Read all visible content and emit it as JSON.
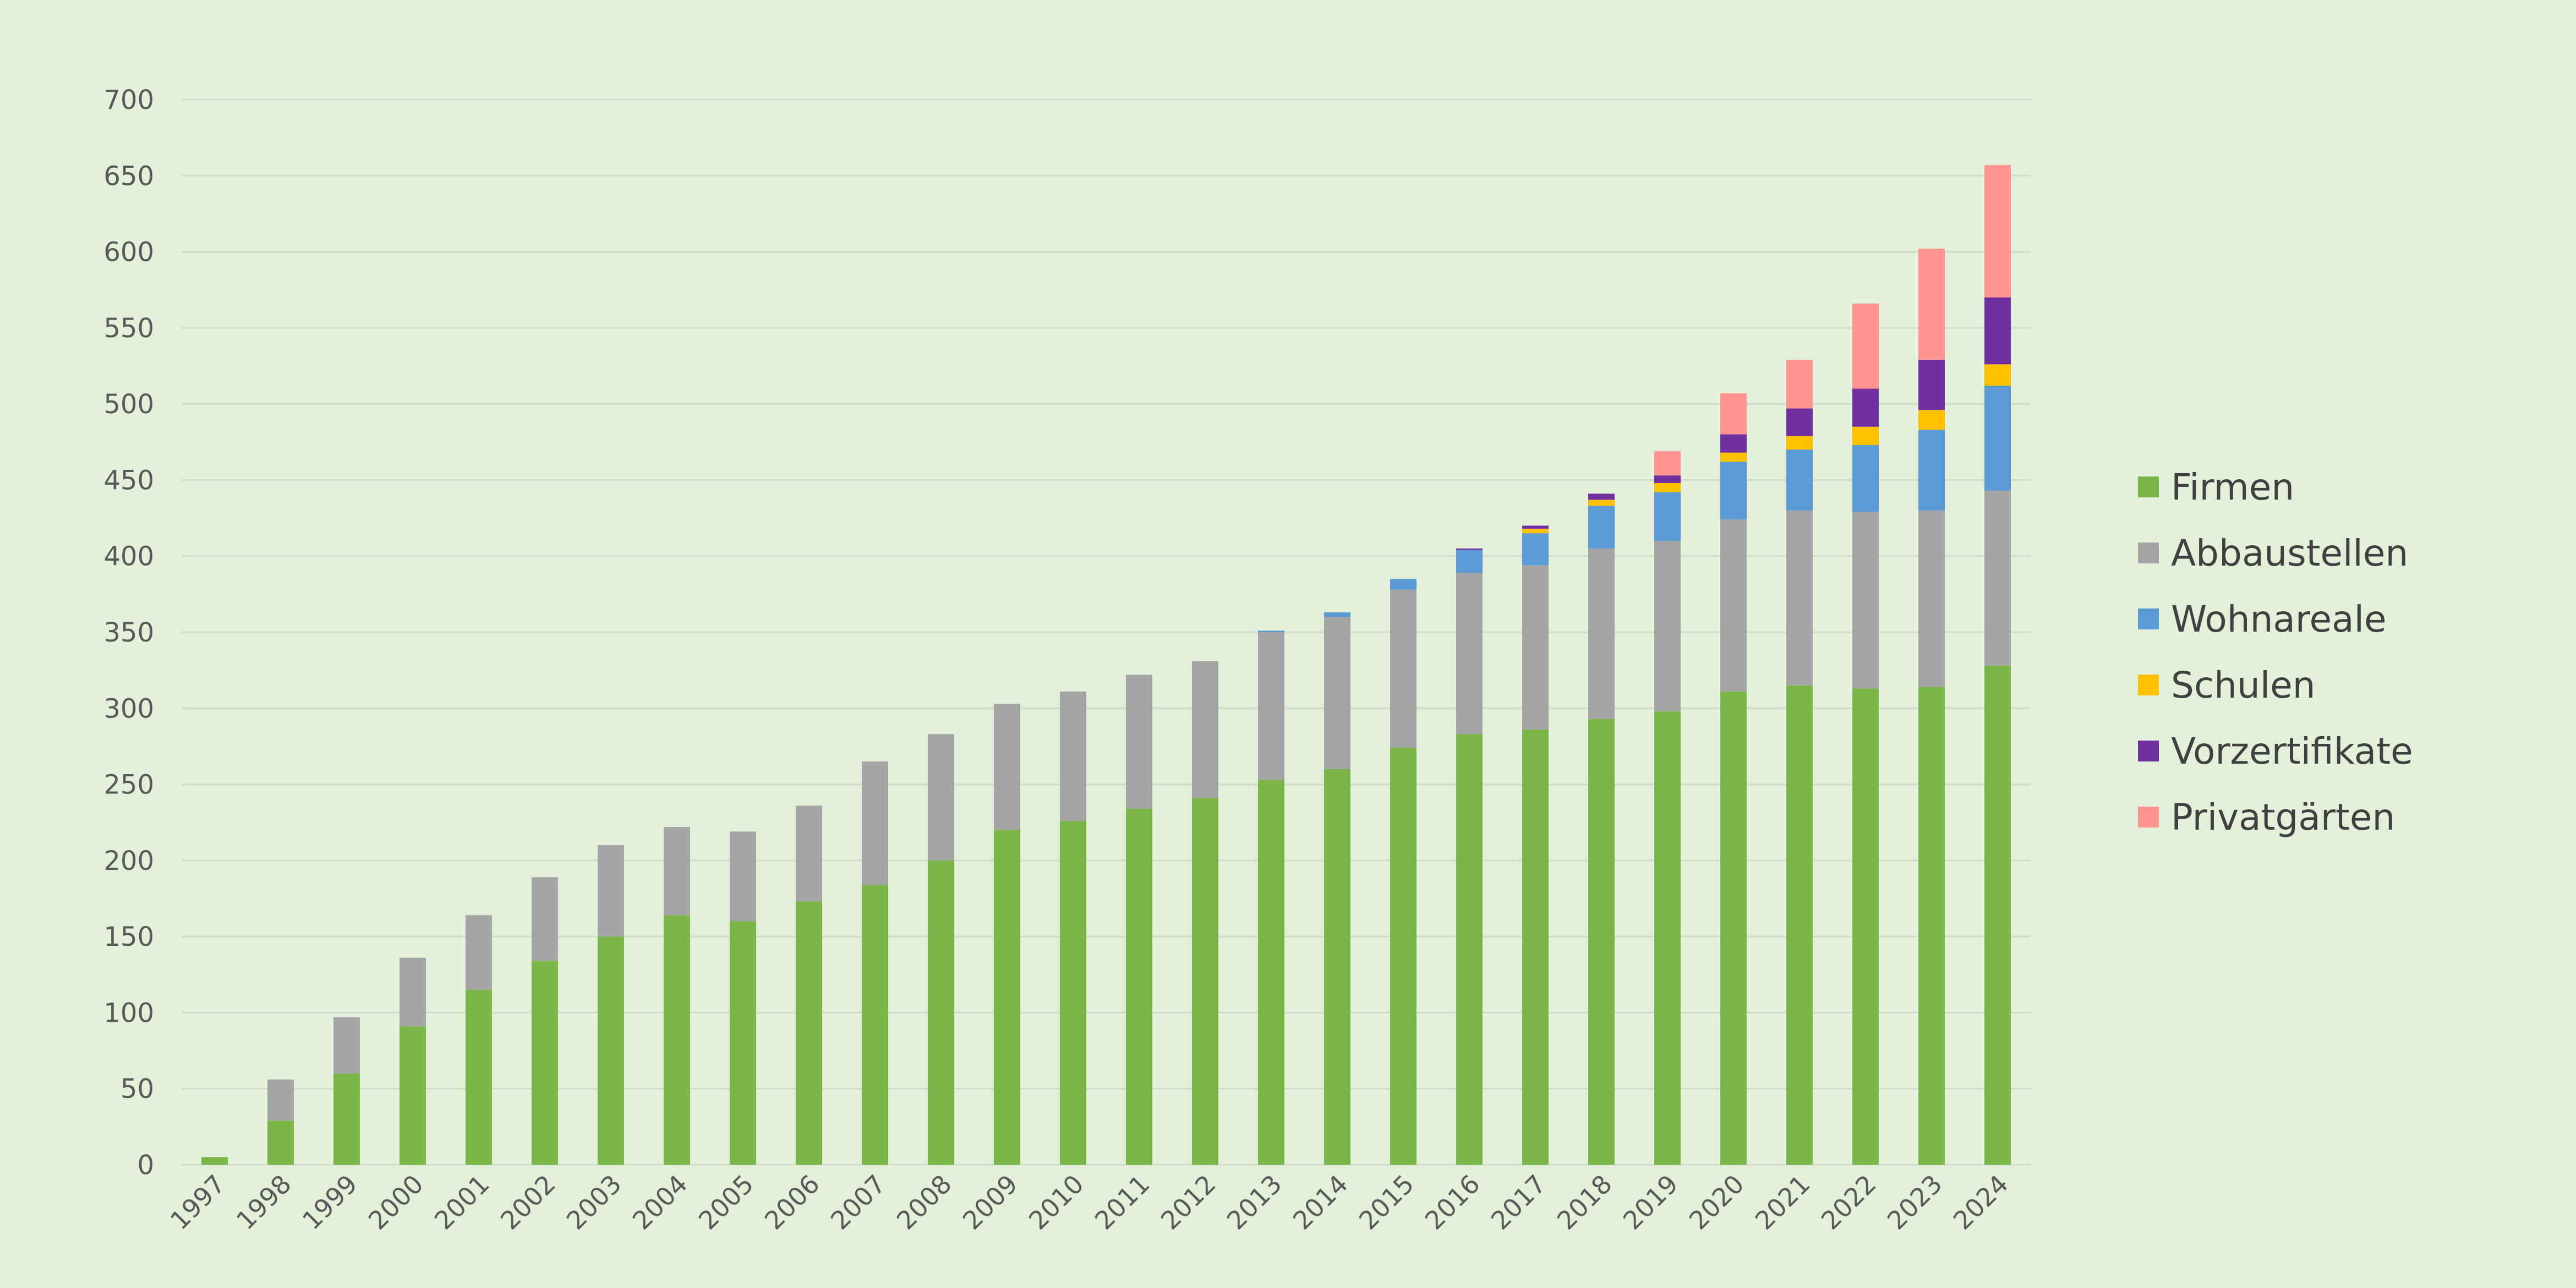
{
  "chart_data": {
    "type": "bar",
    "stacked": true,
    "title": "",
    "xlabel": "",
    "ylabel": "",
    "ylim": [
      0,
      700
    ],
    "yticks": [
      0,
      50,
      100,
      150,
      200,
      250,
      300,
      350,
      400,
      450,
      500,
      550,
      600,
      650,
      700
    ],
    "grid": true,
    "legend_position": "right",
    "categories": [
      "1997",
      "1998",
      "1999",
      "2000",
      "2001",
      "2002",
      "2003",
      "2004",
      "2005",
      "2006",
      "2007",
      "2008",
      "2009",
      "2010",
      "2011",
      "2012",
      "2013",
      "2014",
      "2015",
      "2016",
      "2017",
      "2018",
      "2019",
      "2020",
      "2021",
      "2022",
      "2023",
      "2024"
    ],
    "series": [
      {
        "name": "Firmen",
        "color": "#7ab648",
        "values": [
          5,
          29,
          60,
          91,
          115,
          134,
          150,
          164,
          160,
          173,
          184,
          200,
          220,
          226,
          234,
          241,
          253,
          260,
          274,
          283,
          286,
          293,
          298,
          311,
          315,
          313,
          314,
          328
        ]
      },
      {
        "name": "Abbaustellen",
        "color": "#a5a5a5",
        "values": [
          0,
          27,
          37,
          45,
          49,
          55,
          60,
          58,
          59,
          63,
          81,
          83,
          83,
          85,
          88,
          90,
          97,
          100,
          104,
          106,
          108,
          112,
          112,
          113,
          115,
          116,
          116,
          115
        ]
      },
      {
        "name": "Wohnareale",
        "color": "#5b9bd5",
        "values": [
          0,
          0,
          0,
          0,
          0,
          0,
          0,
          0,
          0,
          0,
          0,
          0,
          0,
          0,
          0,
          0,
          1,
          3,
          7,
          15,
          21,
          28,
          32,
          38,
          40,
          44,
          53,
          69
        ]
      },
      {
        "name": "Schulen",
        "color": "#ffc000",
        "values": [
          0,
          0,
          0,
          0,
          0,
          0,
          0,
          0,
          0,
          0,
          0,
          0,
          0,
          0,
          0,
          0,
          0,
          0,
          0,
          0,
          3,
          4,
          6,
          6,
          9,
          12,
          13,
          14
        ]
      },
      {
        "name": "Vorzertifikate",
        "color": "#7030a0",
        "values": [
          0,
          0,
          0,
          0,
          0,
          0,
          0,
          0,
          0,
          0,
          0,
          0,
          0,
          0,
          0,
          0,
          0,
          0,
          0,
          1,
          2,
          4,
          5,
          12,
          18,
          25,
          33,
          44
        ]
      },
      {
        "name": "Privatgärten",
        "color": "#ff9490",
        "values": [
          0,
          0,
          0,
          0,
          0,
          0,
          0,
          0,
          0,
          0,
          0,
          0,
          0,
          0,
          0,
          0,
          0,
          0,
          0,
          0,
          0,
          0,
          16,
          27,
          32,
          56,
          73,
          87
        ]
      }
    ]
  }
}
